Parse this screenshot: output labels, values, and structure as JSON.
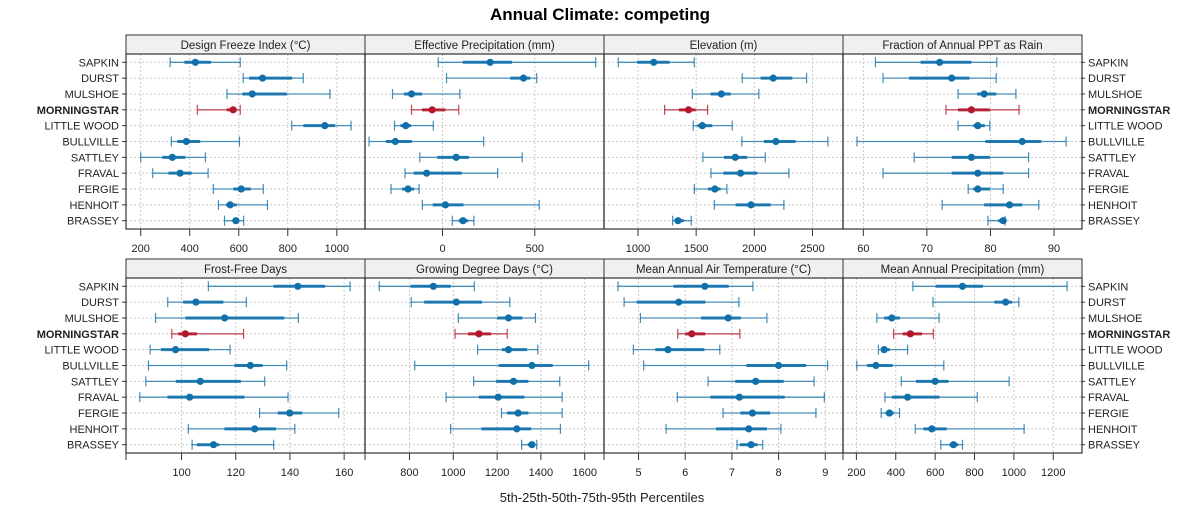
{
  "chart_data": {
    "type": "dotplot-percentile-intervals",
    "title": "Annual Climate: competing",
    "xlabel": "5th-25th-50th-75th-95th Percentiles",
    "percentiles": [
      "p5",
      "p25",
      "p50",
      "p75",
      "p95"
    ],
    "sites": [
      "SAPKIN",
      "DURST",
      "MULSHOE",
      "MORNINGSTAR",
      "LITTLE WOOD",
      "BULLVILLE",
      "SATTLEY",
      "FRAVAL",
      "FERGIE",
      "HENHOIT",
      "BRASSEY"
    ],
    "highlight_site": "MORNINGSTAR",
    "colors": {
      "default": "#1170aa",
      "highlight": "#b2182b"
    },
    "grid": true,
    "row_labels_position": "left-and-right",
    "panels": [
      {
        "title": "Design Freeze Index (°C)",
        "ticks": [
          200,
          400,
          600,
          800,
          1000
        ],
        "xlim": [
          140,
          1115
        ],
        "values": [
          [
            320,
            378,
            423,
            487,
            606
          ],
          [
            618,
            642,
            697,
            818,
            863
          ],
          [
            552,
            615,
            655,
            796,
            972
          ],
          [
            431,
            551,
            577,
            592,
            606
          ],
          [
            816,
            864,
            951,
            993,
            1058
          ],
          [
            325,
            349,
            386,
            443,
            603
          ],
          [
            200,
            288,
            329,
            382,
            464
          ],
          [
            249,
            313,
            361,
            408,
            475
          ],
          [
            496,
            578,
            610,
            649,
            700
          ],
          [
            517,
            548,
            565,
            592,
            717
          ],
          [
            542,
            576,
            588,
            602,
            620
          ]
        ]
      },
      {
        "title": "Effective Precipitation (mm)",
        "ticks": [
          0,
          500
        ],
        "xlim": [
          -420,
          875
        ],
        "values": [
          [
            -23,
            110,
            258,
            377,
            830
          ],
          [
            22,
            367,
            439,
            475,
            510
          ],
          [
            -271,
            -209,
            -168,
            -111,
            94
          ],
          [
            -168,
            -111,
            -56,
            16,
            88
          ],
          [
            -260,
            -228,
            -199,
            -170,
            -50
          ],
          [
            -398,
            -306,
            -256,
            -166,
            223
          ],
          [
            -123,
            -29,
            74,
            143,
            432
          ],
          [
            -203,
            -156,
            -86,
            104,
            299
          ],
          [
            -279,
            -219,
            -187,
            -154,
            -127
          ],
          [
            -109,
            -53,
            16,
            114,
            524
          ],
          [
            53,
            88,
            111,
            139,
            170
          ]
        ]
      },
      {
        "title": "Elevation (m)",
        "ticks": [
          1000,
          1500,
          2000,
          2500
        ],
        "xlim": [
          708,
          2762
        ],
        "values": [
          [
            831,
            994,
            1135,
            1272,
            1484
          ],
          [
            1896,
            2054,
            2162,
            2326,
            2449
          ],
          [
            1467,
            1624,
            1716,
            1796,
            2039
          ],
          [
            1229,
            1352,
            1435,
            1495,
            1598
          ],
          [
            1475,
            1510,
            1553,
            1638,
            1810
          ],
          [
            1893,
            2082,
            2185,
            2354,
            2632
          ],
          [
            1558,
            1739,
            1836,
            1939,
            2094
          ],
          [
            1627,
            1733,
            1882,
            2025,
            2297
          ],
          [
            1484,
            1601,
            1661,
            1710,
            1764
          ],
          [
            1656,
            1839,
            1971,
            2140,
            2254
          ],
          [
            1298,
            1315,
            1344,
            1395,
            1458
          ]
        ]
      },
      {
        "title": "Fraction of Annual PPT as Rain",
        "ticks": [
          60,
          70,
          80,
          90
        ],
        "xlim": [
          56.8,
          94.4
        ],
        "values": [
          [
            61.9,
            69.0,
            72.0,
            77.0,
            81.0
          ],
          [
            63.1,
            67.2,
            73.9,
            76.7,
            80.9
          ],
          [
            74.9,
            77.9,
            79.0,
            80.9,
            84.0
          ],
          [
            73.0,
            74.9,
            77.0,
            79.9,
            84.5
          ],
          [
            74.9,
            77.3,
            78.0,
            79.1,
            79.9
          ],
          [
            59.0,
            79.2,
            85.0,
            88.0,
            91.9
          ],
          [
            68.0,
            73.9,
            77.0,
            79.9,
            86.0
          ],
          [
            63.1,
            73.9,
            78.0,
            82.0,
            86.0
          ],
          [
            76.5,
            77.3,
            78.0,
            79.9,
            82.0
          ],
          [
            72.4,
            79.0,
            83.0,
            85.0,
            87.6
          ],
          [
            79.6,
            81.2,
            82.0,
            82.2,
            82.3
          ]
        ]
      },
      {
        "title": "Frost-Free Days",
        "ticks": [
          100,
          120,
          140,
          160
        ],
        "xlim": [
          79.5,
          167.7
        ],
        "values": [
          [
            109.9,
            133.9,
            142.9,
            153.0,
            162.2
          ],
          [
            94.9,
            100.6,
            105.3,
            115.4,
            123.9
          ],
          [
            90.4,
            101.4,
            115.9,
            137.9,
            143.1
          ],
          [
            96.4,
            98.8,
            101.4,
            105.7,
            122.9
          ],
          [
            88.4,
            92.4,
            97.8,
            110.2,
            117.9
          ],
          [
            87.8,
            119.5,
            125.4,
            129.9,
            138.8
          ],
          [
            86.8,
            97.9,
            106.9,
            121.9,
            130.7
          ],
          [
            84.6,
            94.8,
            103.0,
            123.2,
            139.3
          ],
          [
            128.8,
            135.5,
            139.9,
            144.5,
            158.0
          ],
          [
            102.5,
            115.8,
            127.0,
            134.9,
            141.8
          ],
          [
            103.9,
            105.7,
            111.8,
            113.9,
            134.0
          ]
        ]
      },
      {
        "title": "Growing Degree Days (°C)",
        "ticks": [
          800,
          1000,
          1200,
          1400,
          1600
        ],
        "xlim": [
          597,
          1688
        ],
        "values": [
          [
            662,
            805,
            909,
            988,
            1096
          ],
          [
            808,
            867,
            1014,
            1131,
            1258
          ],
          [
            1023,
            1201,
            1252,
            1315,
            1375
          ],
          [
            1008,
            1067,
            1117,
            1173,
            1246
          ],
          [
            1111,
            1222,
            1252,
            1337,
            1386
          ],
          [
            824,
            1207,
            1359,
            1454,
            1618
          ],
          [
            1093,
            1196,
            1275,
            1343,
            1486
          ],
          [
            967,
            1117,
            1205,
            1325,
            1497
          ],
          [
            1220,
            1246,
            1296,
            1343,
            1497
          ],
          [
            988,
            1128,
            1290,
            1356,
            1489
          ],
          [
            1312,
            1340,
            1359,
            1371,
            1381
          ]
        ]
      },
      {
        "title": "Mean Annual Air Temperature (°C)",
        "ticks": [
          5,
          6,
          7,
          8,
          9
        ],
        "xlim": [
          4.26,
          9.38
        ],
        "values": [
          [
            4.56,
            5.75,
            6.42,
            6.93,
            7.45
          ],
          [
            4.69,
            4.96,
            5.86,
            6.43,
            7.15
          ],
          [
            5.04,
            6.34,
            6.92,
            7.19,
            7.75
          ],
          [
            5.84,
            6.0,
            6.14,
            6.43,
            7.17
          ],
          [
            4.89,
            5.36,
            5.63,
            6.41,
            6.74
          ],
          [
            5.11,
            7.31,
            8.0,
            8.59,
            9.05
          ],
          [
            6.49,
            7.07,
            7.51,
            8.11,
            8.76
          ],
          [
            5.83,
            6.54,
            7.16,
            8.13,
            8.98
          ],
          [
            6.81,
            7.18,
            7.44,
            7.82,
            8.8
          ],
          [
            5.59,
            6.66,
            7.36,
            7.75,
            8.05
          ],
          [
            7.11,
            7.17,
            7.41,
            7.55,
            7.66
          ]
        ]
      },
      {
        "title": "Mean Annual Precipitation (mm)",
        "ticks": [
          200,
          400,
          600,
          800,
          1000,
          1200
        ],
        "xlim": [
          132,
          1346
        ],
        "values": [
          [
            487,
            603,
            739,
            843,
            1270
          ],
          [
            589,
            901,
            958,
            991,
            1025
          ],
          [
            304,
            341,
            380,
            421,
            620
          ],
          [
            389,
            435,
            474,
            533,
            591
          ],
          [
            312,
            328,
            341,
            370,
            460
          ],
          [
            202,
            254,
            299,
            384,
            644
          ],
          [
            428,
            503,
            600,
            668,
            976
          ],
          [
            345,
            380,
            460,
            622,
            814
          ],
          [
            326,
            348,
            368,
            390,
            419
          ],
          [
            499,
            540,
            583,
            659,
            1052
          ],
          [
            629,
            673,
            693,
            717,
            739
          ]
        ]
      }
    ]
  }
}
